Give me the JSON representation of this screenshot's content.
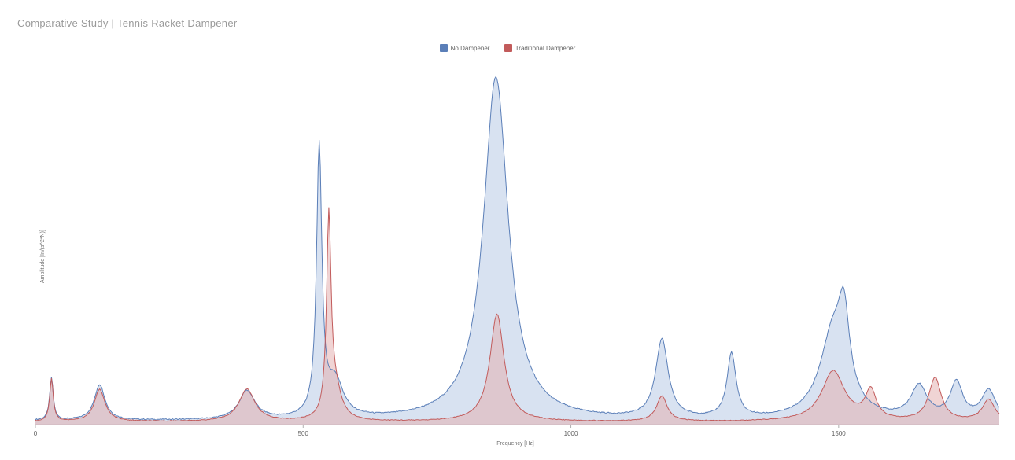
{
  "title": "Comparative Study | Tennis Racket Dampener",
  "chart": {
    "type": "area",
    "xlabel": "Frequency [Hz]",
    "ylabel": "Amplitude [In/(s^2*N)]",
    "xlim": [
      0,
      1800
    ],
    "ylim": [
      0,
      100
    ],
    "xtick_step": 500,
    "xtick_labels": [
      "0",
      "500",
      "1000",
      "1500"
    ],
    "background_color": "#ffffff",
    "axis_color": "#b0b0b0",
    "axis_font_size": 8,
    "label_font_size": 7,
    "title_font_size": 13,
    "title_color": "#9a9a9a",
    "legend": {
      "position": "top-center",
      "font_size": 8,
      "items": [
        {
          "label": "No Dampener",
          "color": "#5b7fb8"
        },
        {
          "label": "Traditional Dampener",
          "color": "#c25b5b"
        }
      ]
    },
    "series": [
      {
        "name": "No Dampener",
        "stroke": "#5b7fb8",
        "fill": "#b8cbe6",
        "fill_opacity": 0.55,
        "stroke_width": 1,
        "baseline": 1.0,
        "noise": 0.3,
        "peaks": [
          {
            "x": 30,
            "h": 12,
            "w": 4
          },
          {
            "x": 120,
            "h": 10,
            "w": 12
          },
          {
            "x": 395,
            "h": 8,
            "w": 18
          },
          {
            "x": 530,
            "h": 75,
            "w": 6
          },
          {
            "x": 560,
            "h": 10,
            "w": 18
          },
          {
            "x": 860,
            "h": 96,
            "w": 28
          },
          {
            "x": 1170,
            "h": 22,
            "w": 14
          },
          {
            "x": 1300,
            "h": 18,
            "w": 10
          },
          {
            "x": 1490,
            "h": 24,
            "w": 30
          },
          {
            "x": 1510,
            "h": 20,
            "w": 12
          },
          {
            "x": 1650,
            "h": 9,
            "w": 18
          },
          {
            "x": 1720,
            "h": 10,
            "w": 14
          },
          {
            "x": 1780,
            "h": 8,
            "w": 16
          }
        ]
      },
      {
        "name": "Traditional Dampener",
        "stroke": "#c25b5b",
        "fill": "#e4b0b0",
        "fill_opacity": 0.55,
        "stroke_width": 1,
        "baseline": 0.8,
        "noise": 0.2,
        "peaks": [
          {
            "x": 30,
            "h": 12,
            "w": 4
          },
          {
            "x": 120,
            "h": 9,
            "w": 12
          },
          {
            "x": 395,
            "h": 9,
            "w": 18
          },
          {
            "x": 548,
            "h": 55,
            "w": 5
          },
          {
            "x": 560,
            "h": 8,
            "w": 14
          },
          {
            "x": 862,
            "h": 30,
            "w": 16
          },
          {
            "x": 1170,
            "h": 7,
            "w": 12
          },
          {
            "x": 1490,
            "h": 14,
            "w": 26
          },
          {
            "x": 1560,
            "h": 8,
            "w": 12
          },
          {
            "x": 1680,
            "h": 12,
            "w": 14
          },
          {
            "x": 1780,
            "h": 6,
            "w": 14
          }
        ]
      }
    ]
  }
}
